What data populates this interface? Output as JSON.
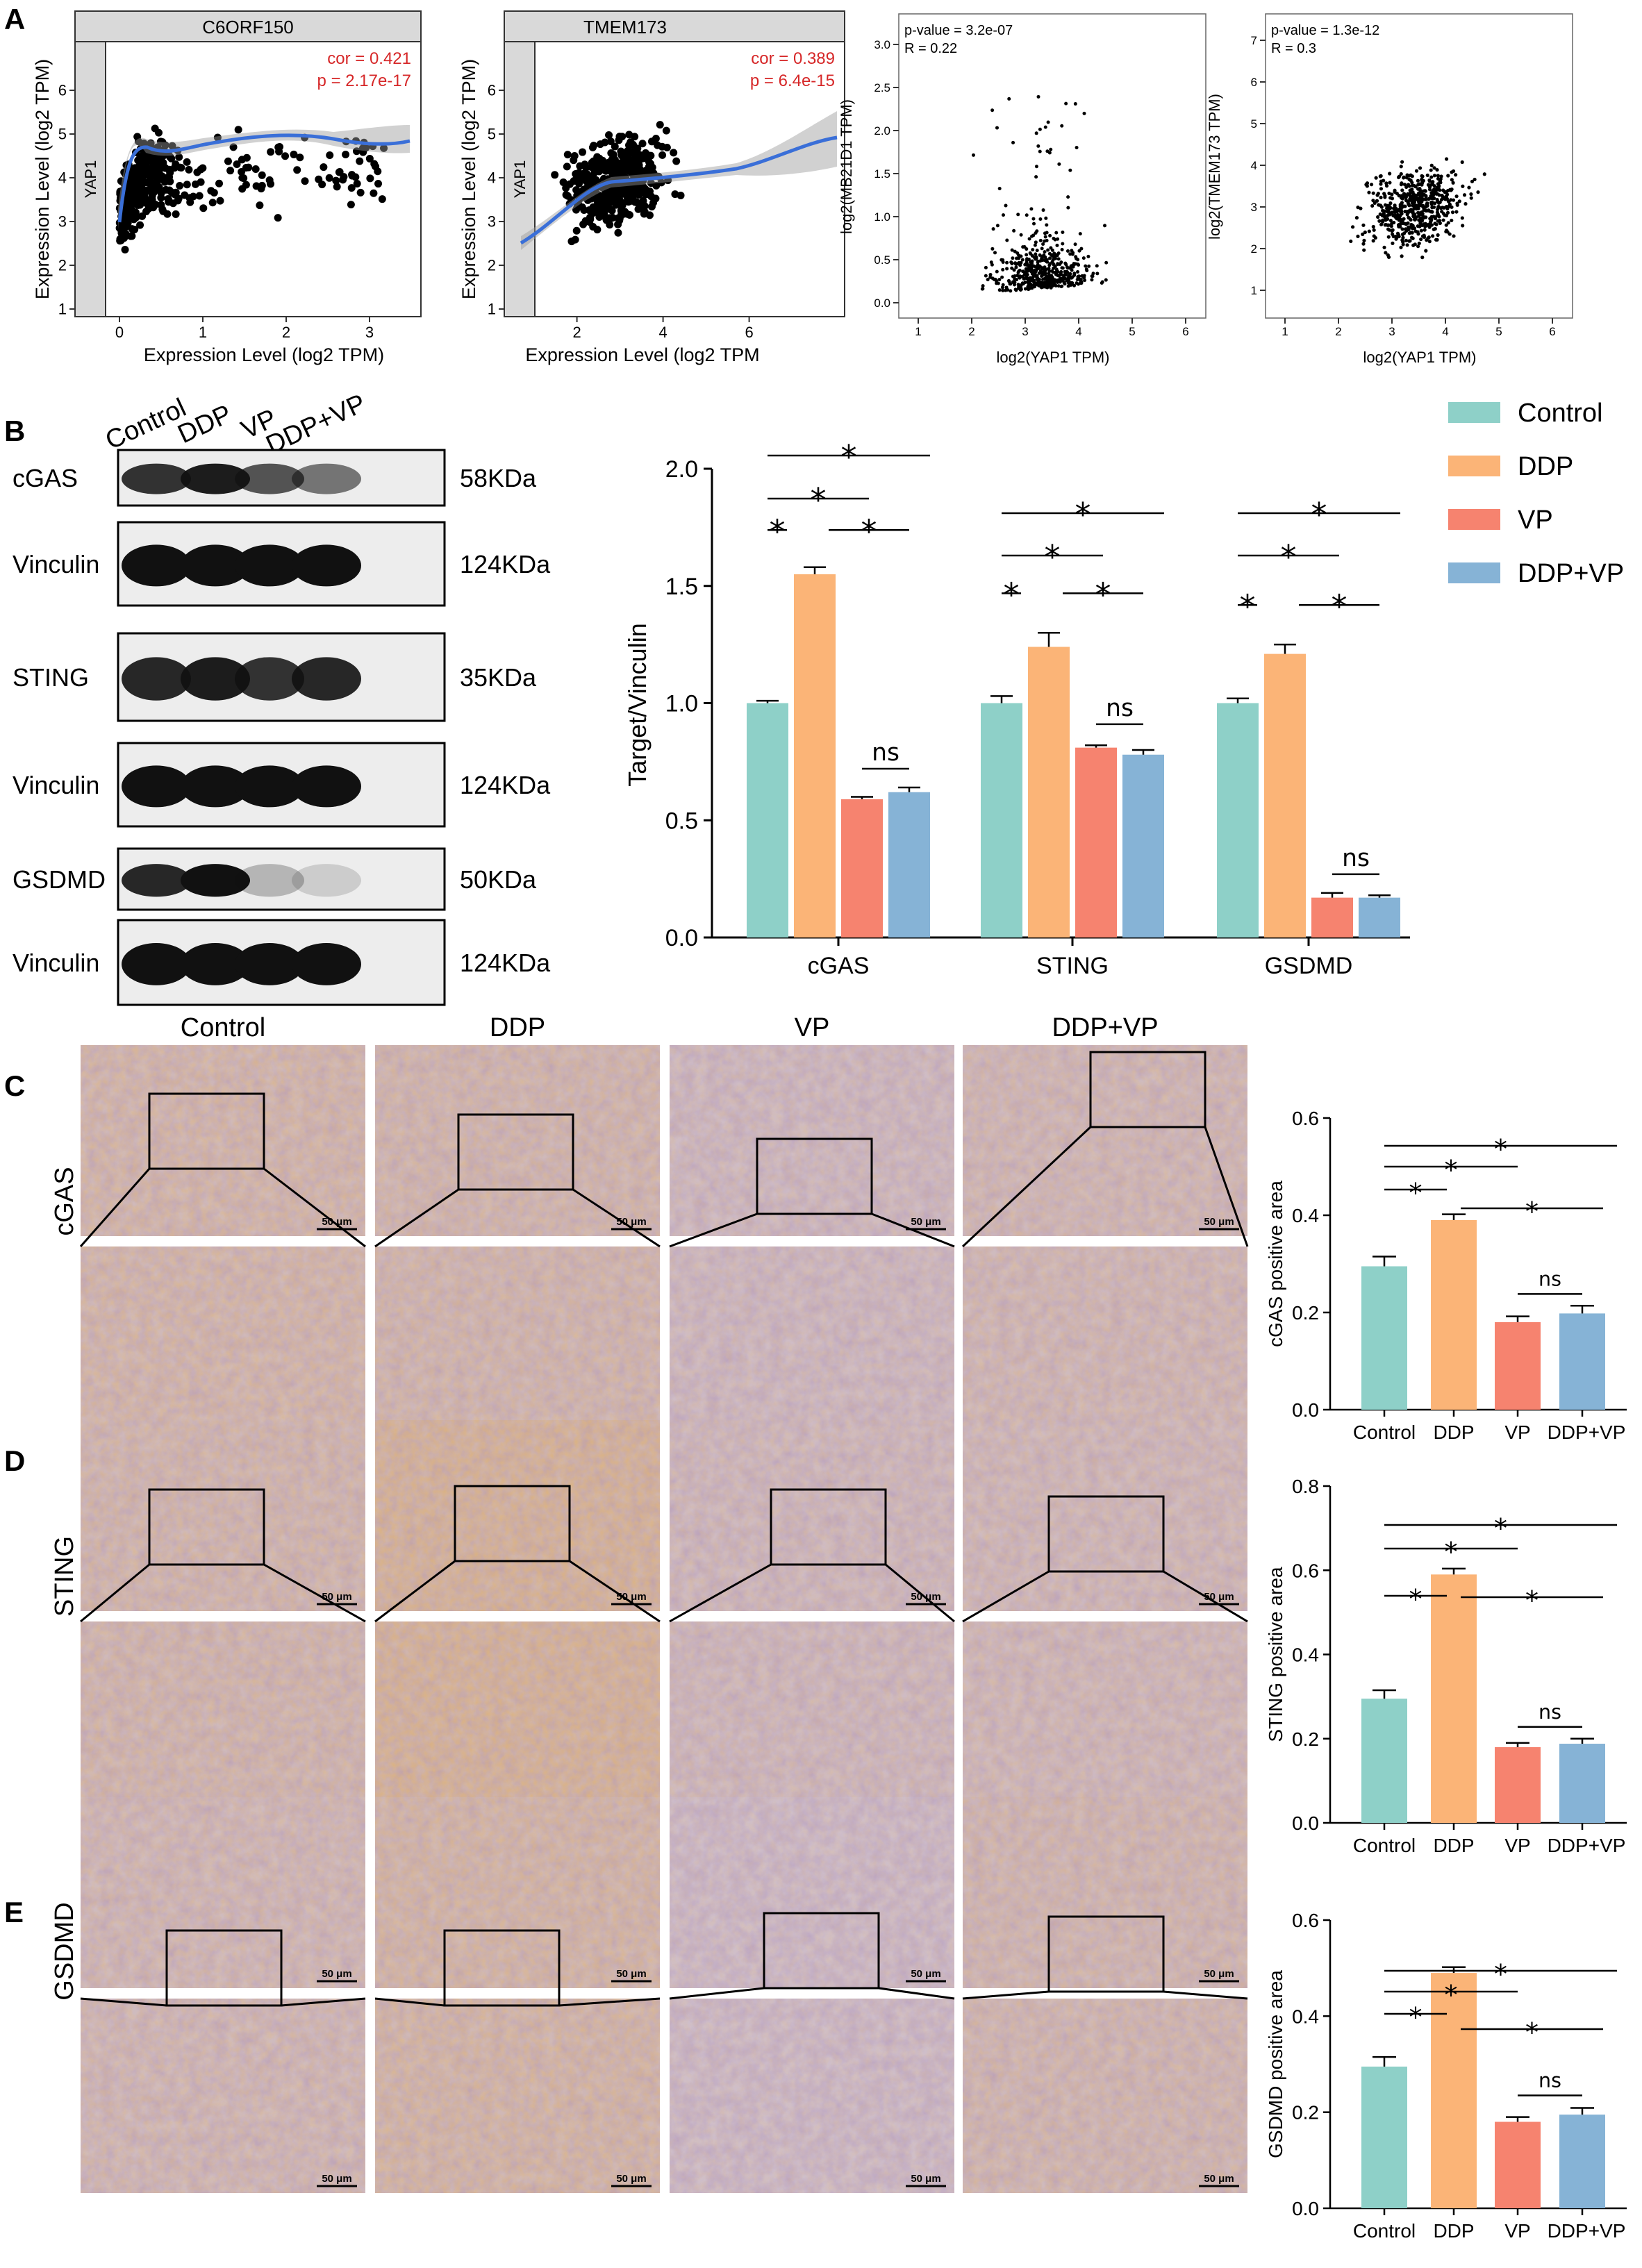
{
  "panels": {
    "A": "A",
    "B": "B",
    "C": "C",
    "D": "D",
    "E": "E"
  },
  "panel_a": {
    "plot1": {
      "strip": "C6ORF150",
      "facet": "YAP1",
      "xlabel": "Expression Level (log2 TPM)",
      "ylabel": "Expression Level (log2 TPM)",
      "cor": "cor = 0.421",
      "p": "p = 2.17e-17",
      "xticks": [
        "0",
        "1",
        "2",
        "3"
      ],
      "yticks": [
        "1",
        "2",
        "3",
        "4",
        "5",
        "6"
      ]
    },
    "plot2": {
      "strip": "TMEM173",
      "facet": "YAP1",
      "xlabel": "Expression Level (log2 TPM",
      "ylabel": "Expression Level (log2 TPM)",
      "cor": "cor = 0.389",
      "p": "p = 6.4e-15",
      "xticks": [
        "2",
        "4",
        "6"
      ],
      "yticks": [
        "1",
        "2",
        "3",
        "4",
        "5",
        "6"
      ]
    },
    "plot3": {
      "pval": "p-value = 3.2e-07",
      "r": "R = 0.22",
      "xlabel": "log2(YAP1 TPM)",
      "ylabel": "log2(MB21D1 TPM)",
      "xticks": [
        "1",
        "2",
        "3",
        "4",
        "5",
        "6"
      ],
      "yticks": [
        "0.0",
        "0.5",
        "1.0",
        "1.5",
        "2.0",
        "2.5",
        "3.0"
      ]
    },
    "plot4": {
      "pval": "p-value = 1.3e-12",
      "r": "R = 0.3",
      "xlabel": "log2(YAP1 TPM)",
      "ylabel": "log2(TMEM173 TPM)",
      "xticks": [
        "1",
        "2",
        "3",
        "4",
        "5",
        "6"
      ],
      "yticks": [
        "1",
        "2",
        "3",
        "4",
        "5",
        "6",
        "7"
      ]
    }
  },
  "colors": {
    "control": "#8ed0c8",
    "ddp": "#fbb477",
    "vp": "#f6836f",
    "ddpvp": "#86b3d6",
    "fit": "#3a6fd8",
    "annot": "#d62728",
    "stain_brown": "#c8884a",
    "stain_blue": "#8f8cc0"
  },
  "blot": {
    "lanes": [
      "Control",
      "DDP",
      "VP",
      "DDP+VP"
    ],
    "rows": [
      {
        "label": "cGAS",
        "kda": "58KDa"
      },
      {
        "label": "Vinculin",
        "kda": "124KDa"
      },
      {
        "label": "STING",
        "kda": "35KDa"
      },
      {
        "label": "Vinculin",
        "kda": "124KDa"
      },
      {
        "label": "GSDMD",
        "kda": "50KDa"
      },
      {
        "label": "Vinculin",
        "kda": "124KDa"
      }
    ]
  },
  "legend": [
    "Control",
    "DDP",
    "VP",
    "DDP+VP"
  ],
  "ihc": {
    "columns": [
      "Control",
      "DDP",
      "VP",
      "DDP+VP"
    ],
    "rows": [
      "cGAS",
      "STING",
      "GSDMD"
    ],
    "scale_label": "50 μm"
  },
  "chart_data": [
    {
      "type": "bar",
      "ylabel": "Target/Vinculin",
      "ylim": [
        0,
        2.0
      ],
      "yticks": [
        "0.0",
        "0.5",
        "1.0",
        "1.5",
        "2.0"
      ],
      "categories": [
        "cGAS",
        "STING",
        "GSDMD"
      ],
      "series": [
        {
          "name": "Control",
          "values": [
            1.0,
            1.0,
            1.0
          ],
          "errors": [
            0.01,
            0.03,
            0.02
          ]
        },
        {
          "name": "DDP",
          "values": [
            1.55,
            1.24,
            1.21
          ],
          "errors": [
            0.03,
            0.06,
            0.04
          ]
        },
        {
          "name": "VP",
          "values": [
            0.59,
            0.81,
            0.17
          ],
          "errors": [
            0.01,
            0.01,
            0.02
          ]
        },
        {
          "name": "DDP+VP",
          "values": [
            0.62,
            0.78,
            0.17
          ],
          "errors": [
            0.02,
            0.02,
            0.01
          ]
        }
      ],
      "significance": [
        "*",
        "*",
        "*",
        "*",
        "ns"
      ]
    },
    {
      "type": "bar",
      "ylabel": "cGAS positive area",
      "ylim": [
        0,
        0.6
      ],
      "yticks": [
        "0.0",
        "0.2",
        "0.4",
        "0.6"
      ],
      "categories": [
        "Control",
        "DDP",
        "VP",
        "DDP+VP"
      ],
      "values": [
        0.295,
        0.39,
        0.18,
        0.198
      ],
      "errors": [
        0.02,
        0.012,
        0.012,
        0.016
      ],
      "significance": [
        "*",
        "*",
        "*",
        "*",
        "ns"
      ]
    },
    {
      "type": "bar",
      "ylabel": "STING positive area",
      "ylim": [
        0,
        0.8
      ],
      "yticks": [
        "0.0",
        "0.2",
        "0.4",
        "0.6",
        "0.8"
      ],
      "categories": [
        "Control",
        "DDP",
        "VP",
        "DDP+VP"
      ],
      "values": [
        0.295,
        0.59,
        0.18,
        0.188
      ],
      "errors": [
        0.02,
        0.014,
        0.01,
        0.012
      ],
      "significance": [
        "*",
        "*",
        "*",
        "*",
        "ns"
      ]
    },
    {
      "type": "bar",
      "ylabel": "GSDMD positive area",
      "ylim": [
        0,
        0.6
      ],
      "yticks": [
        "0.0",
        "0.2",
        "0.4",
        "0.6"
      ],
      "categories": [
        "Control",
        "DDP",
        "VP",
        "DDP+VP"
      ],
      "values": [
        0.295,
        0.49,
        0.18,
        0.195
      ],
      "errors": [
        0.02,
        0.012,
        0.01,
        0.014
      ],
      "significance": [
        "*",
        "*",
        "*",
        "*",
        "ns"
      ]
    }
  ]
}
